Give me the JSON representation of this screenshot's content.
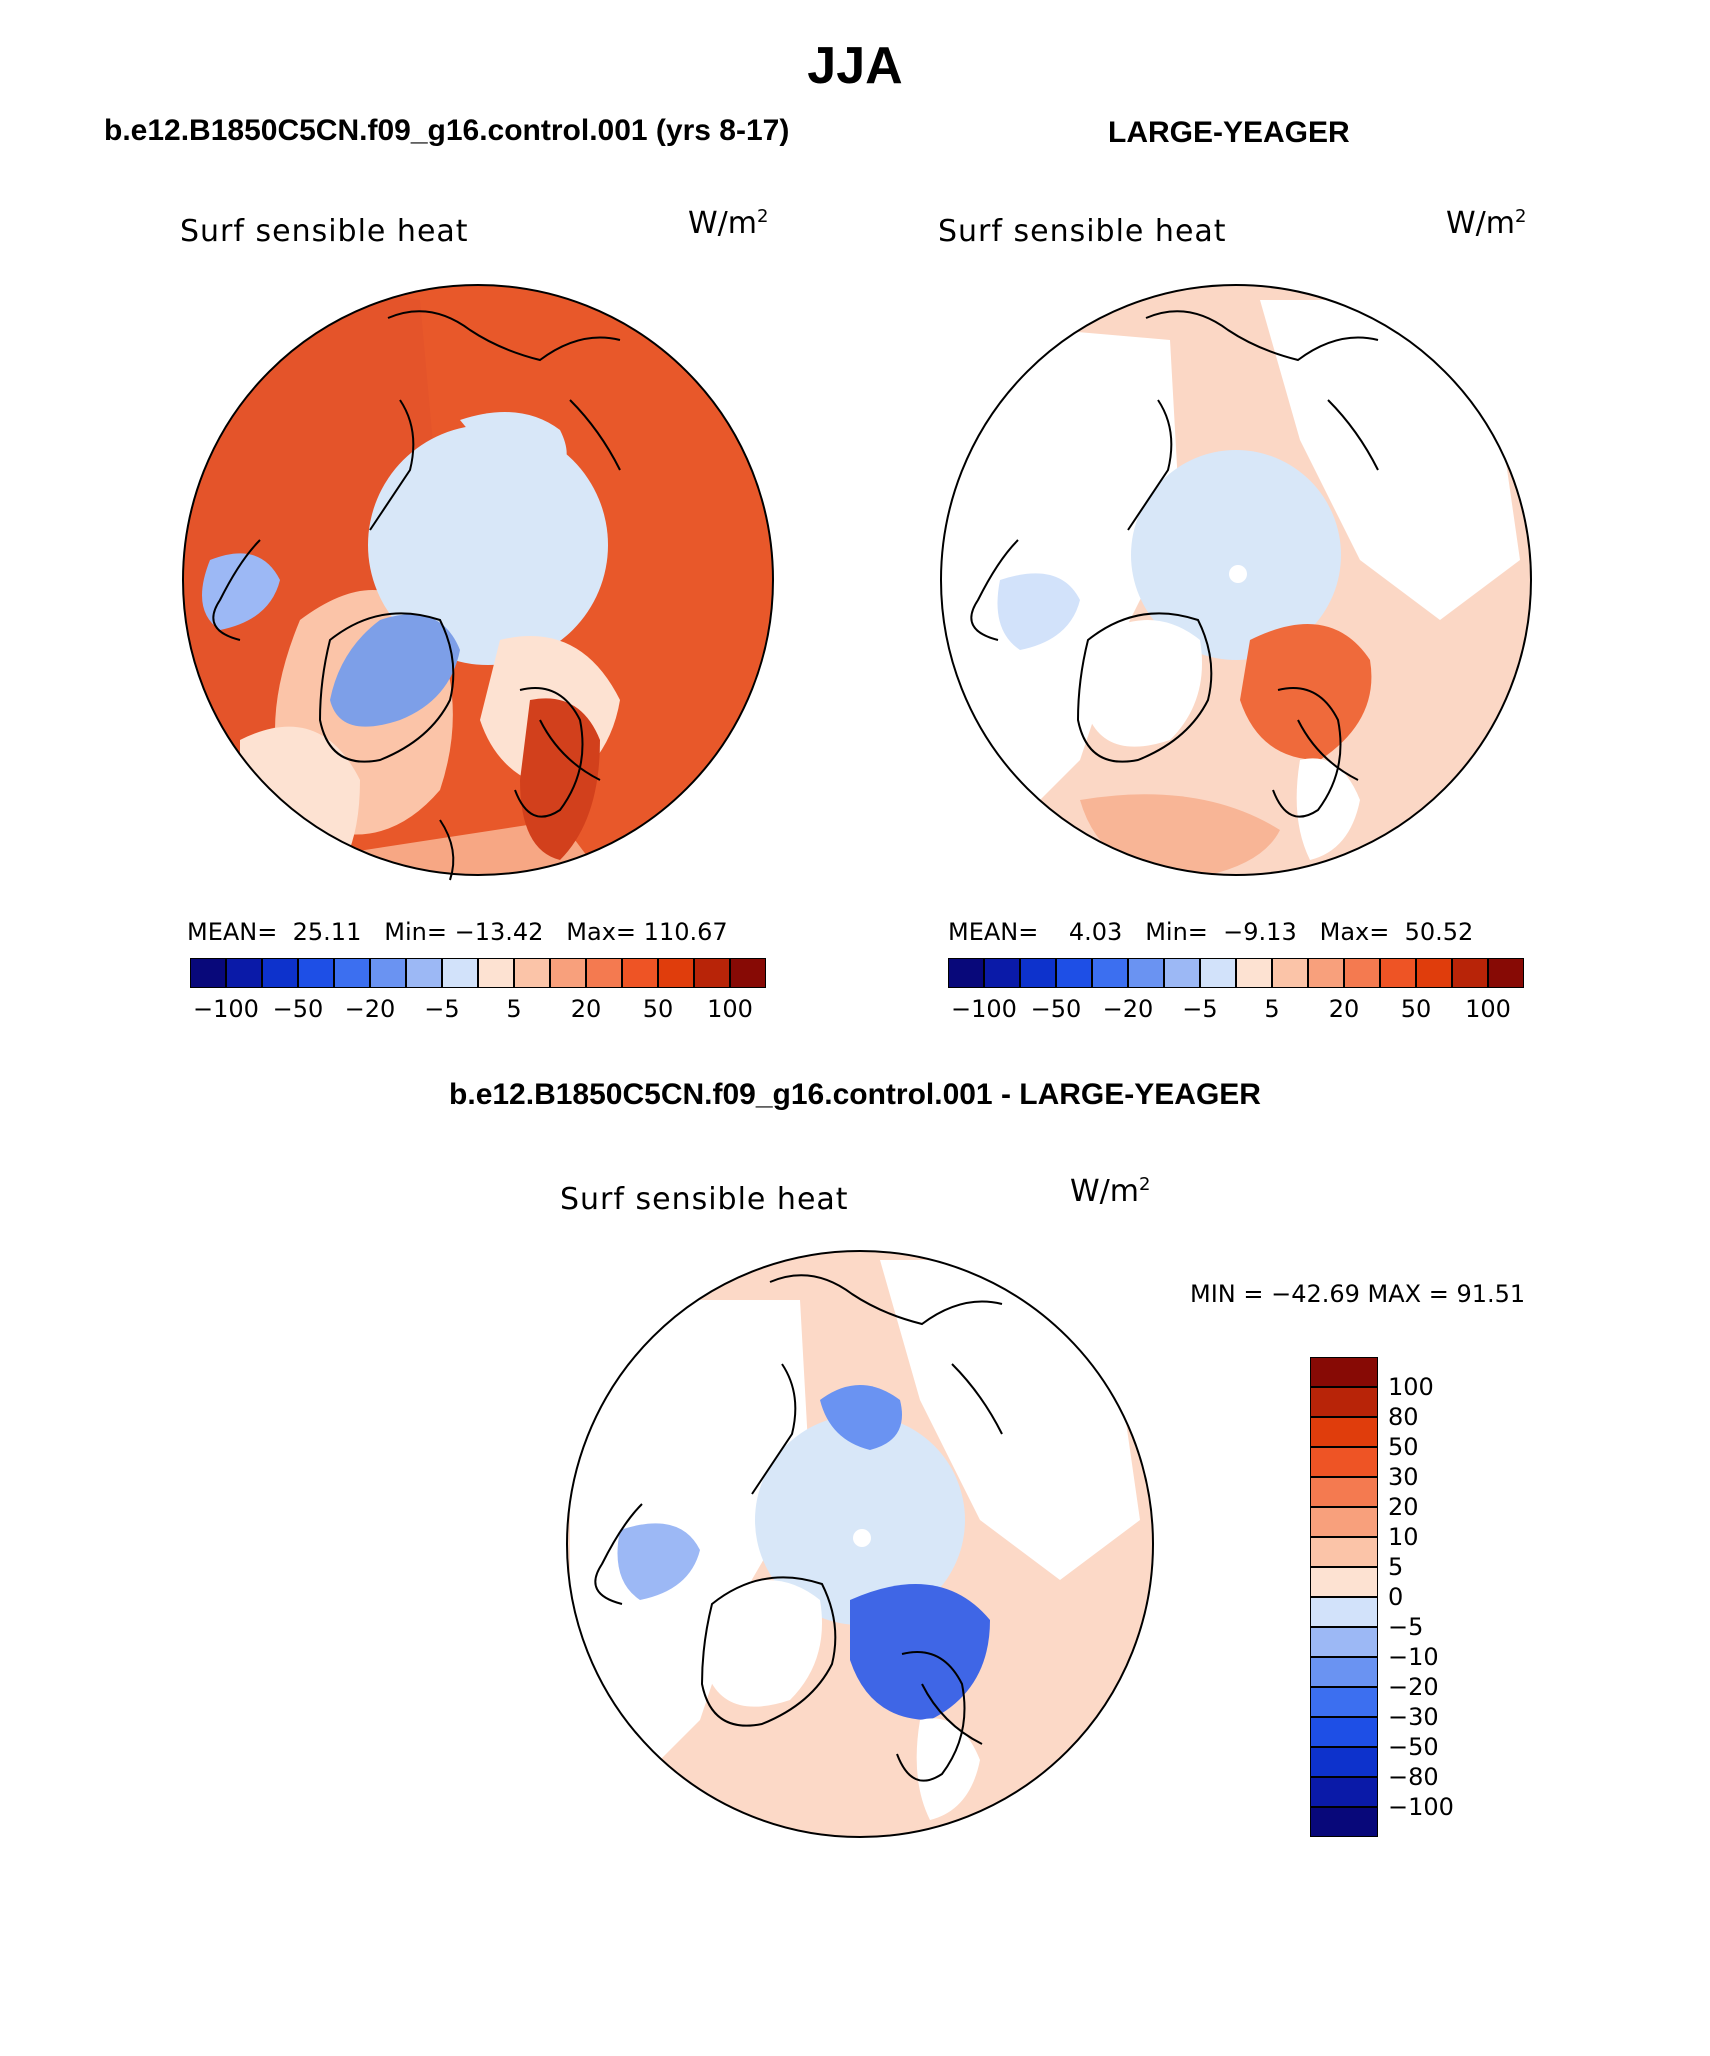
{
  "figure_title": "JJA",
  "panels": {
    "top_left": {
      "title": "b.e12.B1850C5CN.f09_g16.control.001 (yrs 8-17)",
      "variable": "Surf sensible heat",
      "units_base": "W/m",
      "units_exp": "2",
      "mean_label": "MEAN=",
      "mean_value": "25.11",
      "min_label": "Min=",
      "min_value": "−13.42",
      "max_label": "Max=",
      "max_value": "110.67",
      "colorbar_ticks": [
        "−100",
        "−50",
        "−20",
        "−5",
        "5",
        "20",
        "50",
        "100"
      ]
    },
    "top_right": {
      "title": "LARGE-YEAGER",
      "variable": "Surf sensible heat",
      "units_base": "W/m",
      "units_exp": "2",
      "mean_label": "MEAN=",
      "mean_value": "4.03",
      "min_label": "Min=",
      "min_value": "−9.13",
      "max_label": "Max=",
      "max_value": "50.52",
      "colorbar_ticks": [
        "−100",
        "−50",
        "−20",
        "−5",
        "5",
        "20",
        "50",
        "100"
      ]
    },
    "bottom": {
      "title": "b.e12.B1850C5CN.f09_g16.control.001 - LARGE-YEAGER",
      "variable": "Surf sensible heat",
      "units_base": "W/m",
      "units_exp": "2",
      "min_max_text": "MIN = −42.69 MAX =  91.51",
      "colorbar_ticks": [
        "100",
        "80",
        "50",
        "30",
        "20",
        "10",
        "5",
        "0",
        "−5",
        "−10",
        "−20",
        "−30",
        "−50",
        "−80",
        "−100"
      ]
    }
  },
  "colors": {
    "abs_scale": [
      "#08087a",
      "#0a1aa8",
      "#0d32cc",
      "#1e4fe6",
      "#3c6ff0",
      "#6a93f2",
      "#9cb8f5",
      "#d2e2fa",
      "#fde2d2",
      "#fbc4a8",
      "#f8a07c",
      "#f47a50",
      "#ee5425",
      "#e03d0c",
      "#b82408",
      "#870a05"
    ],
    "diff_scale": [
      "#870a05",
      "#b82408",
      "#e03d0c",
      "#ee5425",
      "#f47a50",
      "#f8a07c",
      "#fbc4a8",
      "#fde2d2",
      "#d2e2fa",
      "#9cb8f5",
      "#6a93f2",
      "#3c6ff0",
      "#1e4fe6",
      "#0d32cc",
      "#0a1aa8",
      "#08087a"
    ],
    "map": {
      "control_ocean": "#e8582a",
      "control_ice": "#d8e7f8",
      "control_greenland": "#7d9fe8",
      "control_atlantic": "#f7a784",
      "ly_ocean": "#fbd7c5",
      "ly_ice": "#d8e7f8",
      "ly_barents": "#ef6a3b",
      "diff_ocean": "#fcd9c7",
      "diff_ice": "#d8e7f8",
      "diff_barents": "#3f66e6",
      "land_mask": "#ffffff"
    }
  }
}
